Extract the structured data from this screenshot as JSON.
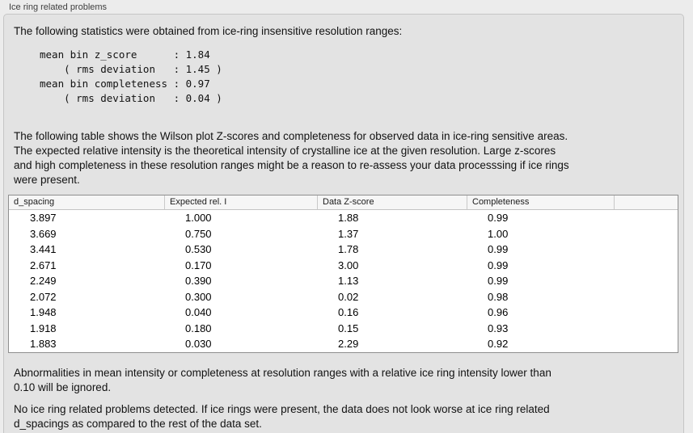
{
  "panel": {
    "title": "Ice ring related problems"
  },
  "intro": {
    "text": "The following statistics were obtained from ice-ring insensitive resolution ranges:"
  },
  "stats_block": {
    "text": "mean bin z_score      : 1.84\n    ( rms deviation   : 1.45 )\nmean bin completeness : 0.97\n    ( rms deviation   : 0.04 )",
    "mean_bin_z_score": "1.84",
    "z_score_rms_deviation": "1.45",
    "mean_bin_completeness": "0.97",
    "completeness_rms_deviation": "0.04"
  },
  "description": {
    "text": "The following table shows the Wilson plot Z-scores and completeness for observed data in ice-ring sensitive areas.\nThe expected relative intensity is the theoretical intensity of crystalline ice at the given resolution. Large z-scores\nand high completeness in these resolution ranges might be a reason to re-assess your data processsing if ice rings\nwere present."
  },
  "table": {
    "columns": [
      "d_spacing",
      "Expected rel. I",
      "Data Z-score",
      "Completeness"
    ],
    "rows": [
      {
        "d_spacing": "3.897",
        "expected_rel_i": "1.000",
        "data_z_score": "1.88",
        "completeness": "0.99"
      },
      {
        "d_spacing": "3.669",
        "expected_rel_i": "0.750",
        "data_z_score": "1.37",
        "completeness": "1.00"
      },
      {
        "d_spacing": "3.441",
        "expected_rel_i": "0.530",
        "data_z_score": "1.78",
        "completeness": "0.99"
      },
      {
        "d_spacing": "2.671",
        "expected_rel_i": "0.170",
        "data_z_score": "3.00",
        "completeness": "0.99"
      },
      {
        "d_spacing": "2.249",
        "expected_rel_i": "0.390",
        "data_z_score": "1.13",
        "completeness": "0.99"
      },
      {
        "d_spacing": "2.072",
        "expected_rel_i": "0.300",
        "data_z_score": "0.02",
        "completeness": "0.98"
      },
      {
        "d_spacing": "1.948",
        "expected_rel_i": "0.040",
        "data_z_score": "0.16",
        "completeness": "0.96"
      },
      {
        "d_spacing": "1.918",
        "expected_rel_i": "0.180",
        "data_z_score": "0.15",
        "completeness": "0.93"
      },
      {
        "d_spacing": "1.883",
        "expected_rel_i": "0.030",
        "data_z_score": "2.29",
        "completeness": "0.92"
      }
    ]
  },
  "notes": {
    "ignore_note": "Abnormalities in mean intensity or completeness at resolution ranges with a relative ice ring intensity lower than\n0.10 will be ignored.",
    "conclusion": "No ice ring related problems detected. If ice rings were present, the data does not look worse at ice ring related\nd_spacings as compared to the rest of the data set."
  },
  "colors": {
    "page_background": "#ececec",
    "panel_background": "#e3e3e3",
    "panel_border": "#c5c5c5",
    "table_border": "#8f8f8f",
    "table_header_background": "#f6f6f6",
    "table_body_background": "#ffffff",
    "text": "#121212"
  }
}
